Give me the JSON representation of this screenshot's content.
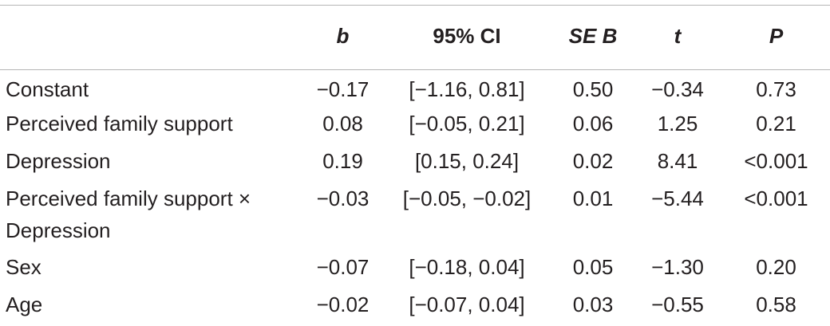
{
  "table": {
    "headers": {
      "label": "",
      "b": "b",
      "ci": "95% CI",
      "se": "SE B",
      "t": "t",
      "p": "P"
    },
    "rows": [
      {
        "label": "Constant",
        "b": "−0.17",
        "ci": "[−1.16, 0.81]",
        "se": "0.50",
        "t": "−0.34",
        "p": "0.73"
      },
      {
        "label": "Perceived family support",
        "b": "0.08",
        "ci": "[−0.05, 0.21]",
        "se": "0.06",
        "t": "1.25",
        "p": "0.21"
      },
      {
        "label": "Depression",
        "b": "0.19",
        "ci": "[0.15, 0.24]",
        "se": "0.02",
        "t": "8.41",
        "p": "<0.001"
      },
      {
        "label": "Perceived family support × Depression",
        "b": "−0.03",
        "ci": "[−0.05, −0.02]",
        "se": "0.01",
        "t": "−5.44",
        "p": "<0.001"
      },
      {
        "label": "Sex",
        "b": "−0.07",
        "ci": "[−0.18, 0.04]",
        "se": "0.05",
        "t": "−1.30",
        "p": "0.20"
      },
      {
        "label": "Age",
        "b": "−0.02",
        "ci": "[−0.07, 0.04]",
        "se": "0.03",
        "t": "−0.55",
        "p": "0.58"
      }
    ]
  }
}
